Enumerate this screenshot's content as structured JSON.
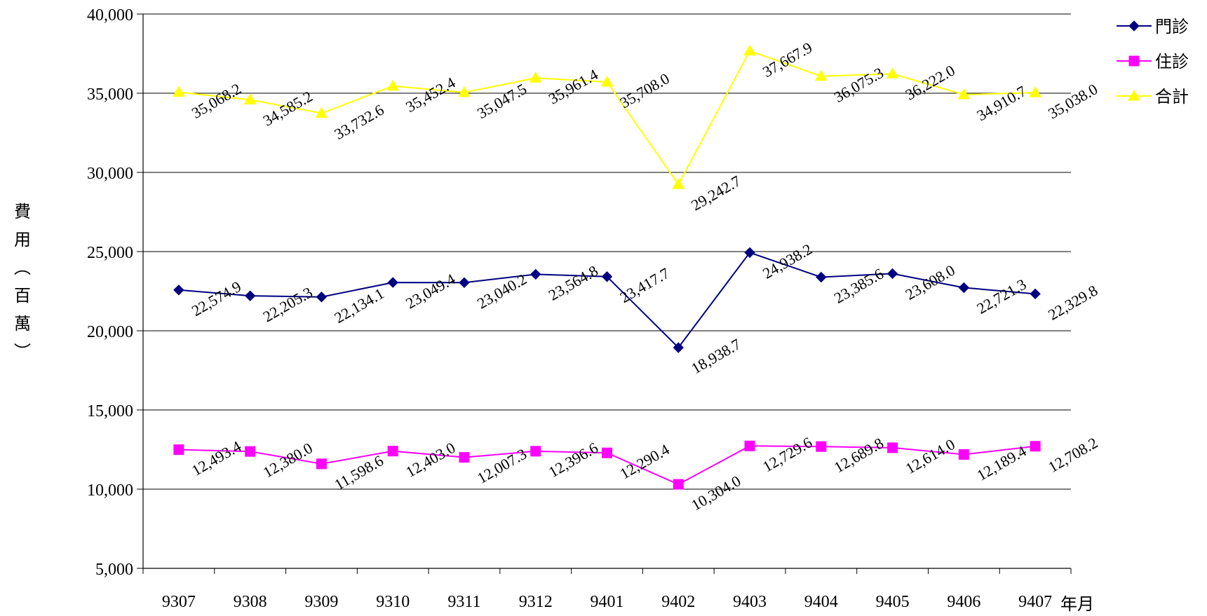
{
  "chart_data": {
    "type": "line",
    "categories": [
      "9307",
      "9308",
      "9309",
      "9310",
      "9311",
      "9312",
      "9401",
      "9402",
      "9403",
      "9404",
      "9405",
      "9406",
      "9407"
    ],
    "series": [
      {
        "name": "門診",
        "color": "#000080",
        "marker": "diamond",
        "values": [
          22574.9,
          22205.3,
          22134.1,
          23049.4,
          23040.2,
          23564.8,
          23417.7,
          18938.7,
          24938.2,
          23385.6,
          23608.0,
          22721.3,
          22329.8
        ],
        "labels": [
          "22,574.9",
          "22,205.3",
          "22,134.1",
          "23,049.4",
          "23,040.2",
          "23,564.8",
          "23,417.7",
          "18,938.7",
          "24,938.2",
          "23,385.6",
          "23,608.0",
          "22,721.3",
          "22,329.8"
        ]
      },
      {
        "name": "住診",
        "color": "#FF00FF",
        "marker": "square",
        "values": [
          12493.4,
          12380.0,
          11598.6,
          12403.0,
          12007.3,
          12396.6,
          12290.4,
          10304.0,
          12729.6,
          12689.8,
          12614.0,
          12189.4,
          12708.2
        ],
        "labels": [
          "12,493.4",
          "12,380.0",
          "11,598.6",
          "12,403.0",
          "12,007.3",
          "12,396.6",
          "12,290.4",
          "10,304.0",
          "12,729.6",
          "12,689.8",
          "12,614.0",
          "12,189.4",
          "12,708.2"
        ]
      },
      {
        "name": "合計",
        "color": "#FFFF00",
        "marker": "triangle",
        "values": [
          35068.2,
          34585.2,
          33732.6,
          35452.4,
          35047.5,
          35961.4,
          35708.0,
          29242.7,
          37667.9,
          36075.3,
          36222.0,
          34910.7,
          35038.0
        ],
        "labels": [
          "35,068.2",
          "34,585.2",
          "33,732.6",
          "35,452.4",
          "35,047.5",
          "35,961.4",
          "35,708.0",
          "29,242.7",
          "37,667.9",
          "36,075.3",
          "36,222.0",
          "34,910.7",
          "35,038.0"
        ]
      }
    ],
    "ylim": [
      5000,
      40000
    ],
    "yticks": [
      5000,
      10000,
      15000,
      20000,
      25000,
      30000,
      35000,
      40000
    ],
    "ytick_labels": [
      "5,000",
      "10,000",
      "15,000",
      "20,000",
      "25,000",
      "30,000",
      "35,000",
      "40,000"
    ],
    "ylabel_chars": [
      "費",
      "用",
      "︵",
      "百",
      "萬",
      "︶"
    ],
    "xlabel": "年月",
    "grid": true,
    "legend_position": "top-right"
  }
}
